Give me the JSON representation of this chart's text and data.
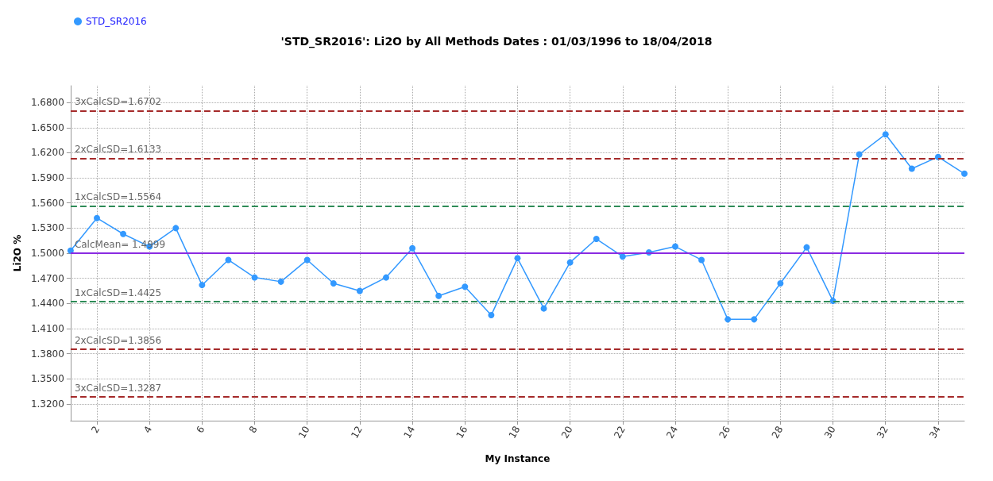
{
  "chart_data": {
    "type": "line",
    "title": "'STD_SR2016': Li2O by All Methods Dates : 01/03/1996 to 18/04/2018",
    "xlabel": "My Instance",
    "ylabel": "Li2O %",
    "x": [
      1,
      2,
      3,
      4,
      5,
      6,
      7,
      8,
      9,
      10,
      11,
      12,
      13,
      14,
      15,
      16,
      17,
      18,
      19,
      20,
      21,
      22,
      23,
      24,
      25,
      26,
      27,
      28,
      29,
      30,
      31,
      32,
      33,
      34,
      35
    ],
    "series": [
      {
        "name": "STD_SR2016",
        "color": "#3399ff",
        "values": [
          1.503,
          1.542,
          1.523,
          1.508,
          1.53,
          1.462,
          1.492,
          1.471,
          1.466,
          1.492,
          1.464,
          1.455,
          1.471,
          1.506,
          1.449,
          1.46,
          1.426,
          1.494,
          1.434,
          1.489,
          1.517,
          1.496,
          1.501,
          1.508,
          1.492,
          1.421,
          1.421,
          1.464,
          1.507,
          1.443,
          1.618,
          1.642,
          1.601,
          1.615,
          1.595
        ]
      }
    ],
    "xlim": [
      1,
      35
    ],
    "xticks": [
      2,
      4,
      6,
      8,
      10,
      12,
      14,
      16,
      18,
      20,
      22,
      24,
      26,
      28,
      30,
      32,
      34
    ],
    "ylim": [
      1.3,
      1.7
    ],
    "yticks": [
      {
        "value": 1.32,
        "label": "1.3200"
      },
      {
        "value": 1.35,
        "label": "1.3500"
      },
      {
        "value": 1.38,
        "label": "1.3800"
      },
      {
        "value": 1.41,
        "label": "1.4100"
      },
      {
        "value": 1.44,
        "label": "1.4400"
      },
      {
        "value": 1.47,
        "label": "1.4700"
      },
      {
        "value": 1.5,
        "label": "1.5000"
      },
      {
        "value": 1.53,
        "label": "1.5300"
      },
      {
        "value": 1.56,
        "label": "1.5600"
      },
      {
        "value": 1.59,
        "label": "1.5900"
      },
      {
        "value": 1.62,
        "label": "1.6200"
      },
      {
        "value": 1.65,
        "label": "1.6500"
      },
      {
        "value": 1.68,
        "label": "1.6800"
      }
    ],
    "ref_lines": [
      {
        "axis": "y",
        "value": 1.6702,
        "label": "3xCalcSD=1.6702",
        "color": "#a52a2a",
        "line_style": "dashed"
      },
      {
        "axis": "y",
        "value": 1.6133,
        "label": "2xCalcSD=1.6133",
        "color": "#a52a2a",
        "line_style": "dashed"
      },
      {
        "axis": "y",
        "value": 1.5564,
        "label": "1xCalcSD=1.5564",
        "color": "#2e8b57",
        "line_style": "dashed"
      },
      {
        "axis": "y",
        "value": 1.4999,
        "label": "CalcMean= 1.4999",
        "color": "#8a2be2",
        "line_style": "solid"
      },
      {
        "axis": "y",
        "value": 1.4425,
        "label": "1xCalcSD=1.4425",
        "color": "#2e8b57",
        "line_style": "dashed"
      },
      {
        "axis": "y",
        "value": 1.3856,
        "label": "2xCalcSD=1.3856",
        "color": "#a52a2a",
        "line_style": "dashed"
      },
      {
        "axis": "y",
        "value": 1.3287,
        "label": "3xCalcSD=1.3287",
        "color": "#a52a2a",
        "line_style": "dashed"
      }
    ],
    "grid": true,
    "legend": "top left",
    "marker": "circle",
    "line_style": "solid"
  }
}
